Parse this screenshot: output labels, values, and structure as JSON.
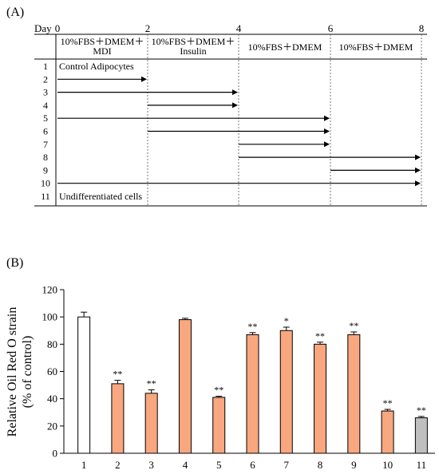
{
  "panel_a": {
    "label": "(A)",
    "day_label": "Day",
    "day_ticks": [
      "0",
      "2",
      "4",
      "6",
      "8"
    ],
    "phases": [
      {
        "line1": "10%FBS＋DMEM＋",
        "line2": "MDI"
      },
      {
        "line1": "10%FBS＋DMEM＋",
        "line2": "Insulin"
      },
      {
        "line1": "10%FBS＋DMEM",
        "line2": ""
      },
      {
        "line1": "10%FBS＋DMEM",
        "line2": ""
      }
    ],
    "rows": [
      {
        "num": "1",
        "start": 0,
        "end": null,
        "text": "Control Adipocytes"
      },
      {
        "num": "2",
        "start": 0,
        "end": 2,
        "text": ""
      },
      {
        "num": "3",
        "start": 0,
        "end": 4,
        "text": ""
      },
      {
        "num": "4",
        "start": 2,
        "end": 4,
        "text": ""
      },
      {
        "num": "5",
        "start": 0,
        "end": 6,
        "text": ""
      },
      {
        "num": "6",
        "start": 2,
        "end": 6,
        "text": ""
      },
      {
        "num": "7",
        "start": 4,
        "end": 6,
        "text": ""
      },
      {
        "num": "8",
        "start": 4,
        "end": 8,
        "text": ""
      },
      {
        "num": "9",
        "start": 6,
        "end": 8,
        "text": ""
      },
      {
        "num": "10",
        "start": 0,
        "end": 8,
        "text": ""
      },
      {
        "num": "11",
        "start": 0,
        "end": null,
        "text": "Undifferentiated cells"
      }
    ]
  },
  "panel_b": {
    "label": "(B)"
  },
  "colors": {
    "control": "#ffffff",
    "treated": "#f8a77f",
    "undiff": "#bfbfbf"
  },
  "chart_data": {
    "type": "bar",
    "categories": [
      "1",
      "2",
      "3",
      "4",
      "5",
      "6",
      "7",
      "8",
      "9",
      "10",
      "11"
    ],
    "values": [
      100,
      51,
      44,
      98,
      41,
      87,
      90,
      80,
      87,
      31,
      26
    ],
    "errors": [
      3.5,
      2.5,
      2.5,
      1.0,
      0.8,
      1.5,
      2.5,
      1.5,
      2.0,
      1.2,
      1.0
    ],
    "significance": [
      "",
      "**",
      "**",
      "",
      "**",
      "**",
      "*",
      "**",
      "**",
      "**",
      "**"
    ],
    "bar_colors": [
      "control",
      "treated",
      "treated",
      "treated",
      "treated",
      "treated",
      "treated",
      "treated",
      "treated",
      "treated",
      "undiff"
    ],
    "ylabel_line1": "Relative Oil Red O strain",
    "ylabel_line2": "(% of control)",
    "yticks": [
      "0",
      "20",
      "40",
      "60",
      "80",
      "100",
      "120"
    ],
    "ylim": [
      0,
      120
    ]
  }
}
